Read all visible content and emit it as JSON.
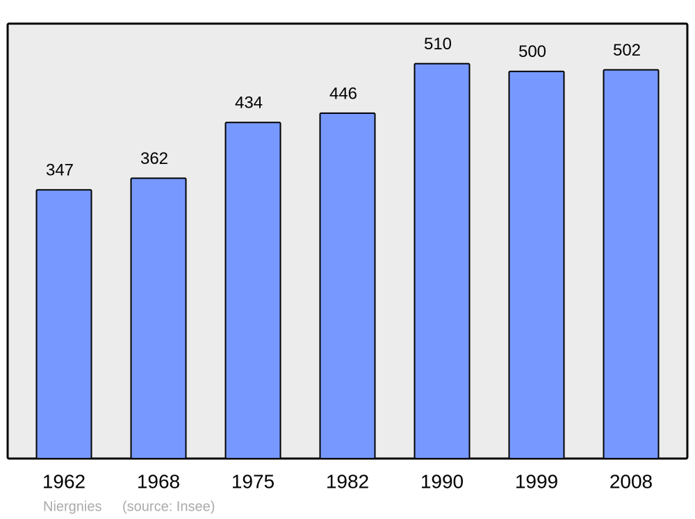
{
  "chart_data": {
    "type": "bar",
    "title": "Niergnies",
    "source": "(source: Insee)",
    "categories": [
      "1962",
      "1968",
      "1975",
      "1982",
      "1990",
      "1999",
      "2008"
    ],
    "values": [
      347,
      362,
      434,
      446,
      510,
      500,
      502
    ],
    "color": "#7799ff",
    "background": "#ececec"
  }
}
